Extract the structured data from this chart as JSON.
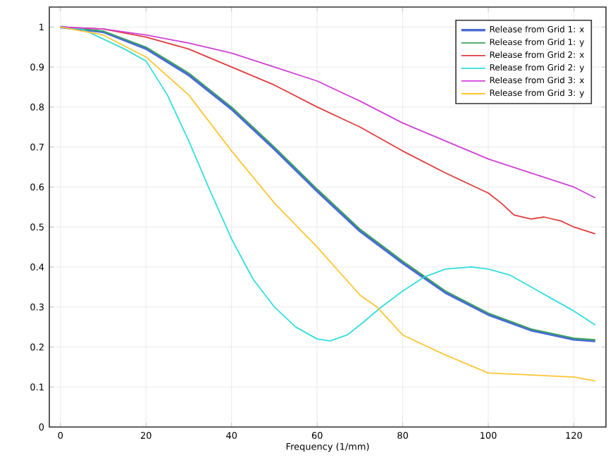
{
  "chart_data": {
    "type": "line",
    "xlabel": "Frequency (1/mm)",
    "xlim": [
      -2.6,
      127.5
    ],
    "ylim": [
      0,
      1.05
    ],
    "xticks": [
      0,
      20,
      40,
      60,
      80,
      100,
      120
    ],
    "yticks": [
      0,
      0.1,
      0.2,
      0.3,
      0.4,
      0.5,
      0.6,
      0.7,
      0.8,
      0.9,
      1
    ],
    "grid": true,
    "legend": "top right",
    "marker": "none",
    "line_style": "solid",
    "series": [
      {
        "name": "Release from Grid 1: x",
        "color": "#4a6cd4",
        "x": [
          0,
          10,
          20,
          30,
          40,
          50,
          60,
          70,
          80,
          90,
          100,
          110,
          120,
          125
        ],
        "values": [
          1,
          0.988,
          0.946,
          0.88,
          0.795,
          0.695,
          0.59,
          0.49,
          0.41,
          0.336,
          0.281,
          0.242,
          0.219,
          0.215
        ]
      },
      {
        "name": "Release from Grid 1: y",
        "color": "#3aa55a",
        "x": [
          0,
          10,
          20,
          30,
          40,
          50,
          60,
          70,
          80,
          90,
          100,
          110,
          120,
          125
        ],
        "values": [
          1,
          0.99,
          0.95,
          0.885,
          0.8,
          0.7,
          0.595,
          0.495,
          0.415,
          0.34,
          0.285,
          0.245,
          0.222,
          0.218
        ]
      },
      {
        "name": "Release from Grid 2: x",
        "color": "#e03c3c",
        "x": [
          0,
          10,
          20,
          30,
          40,
          50,
          60,
          70,
          80,
          90,
          95,
          100,
          103,
          106,
          110,
          113,
          117,
          120,
          125
        ],
        "values": [
          1,
          0.995,
          0.975,
          0.945,
          0.9,
          0.855,
          0.8,
          0.75,
          0.69,
          0.635,
          0.61,
          0.585,
          0.56,
          0.53,
          0.52,
          0.525,
          0.515,
          0.5,
          0.483
        ]
      },
      {
        "name": "Release from Grid 2: y",
        "color": "#33dddd",
        "x": [
          0,
          5,
          10,
          15,
          20,
          25,
          30,
          35,
          40,
          45,
          50,
          55,
          60,
          63,
          67,
          70,
          75,
          80,
          85,
          90,
          96,
          100,
          105,
          110,
          115,
          120,
          125
        ],
        "values": [
          1,
          0.995,
          0.97,
          0.945,
          0.915,
          0.83,
          0.715,
          0.59,
          0.47,
          0.37,
          0.3,
          0.25,
          0.22,
          0.215,
          0.23,
          0.255,
          0.3,
          0.34,
          0.375,
          0.395,
          0.4,
          0.395,
          0.38,
          0.35,
          0.32,
          0.29,
          0.255
        ]
      },
      {
        "name": "Release from Grid 3: x",
        "color": "#d040d8",
        "x": [
          0,
          10,
          20,
          30,
          40,
          50,
          60,
          70,
          80,
          90,
          100,
          110,
          120,
          125
        ],
        "values": [
          1,
          0.995,
          0.98,
          0.96,
          0.935,
          0.9,
          0.865,
          0.815,
          0.76,
          0.715,
          0.67,
          0.635,
          0.6,
          0.573
        ]
      },
      {
        "name": "Release from Grid 3: y",
        "color": "#ffc533",
        "x": [
          0,
          10,
          20,
          30,
          40,
          50,
          60,
          70,
          74,
          80,
          90,
          100,
          110,
          120,
          125
        ],
        "values": [
          1,
          0.98,
          0.925,
          0.83,
          0.69,
          0.56,
          0.45,
          0.33,
          0.3,
          0.23,
          0.18,
          0.135,
          0.13,
          0.125,
          0.115
        ]
      }
    ]
  }
}
